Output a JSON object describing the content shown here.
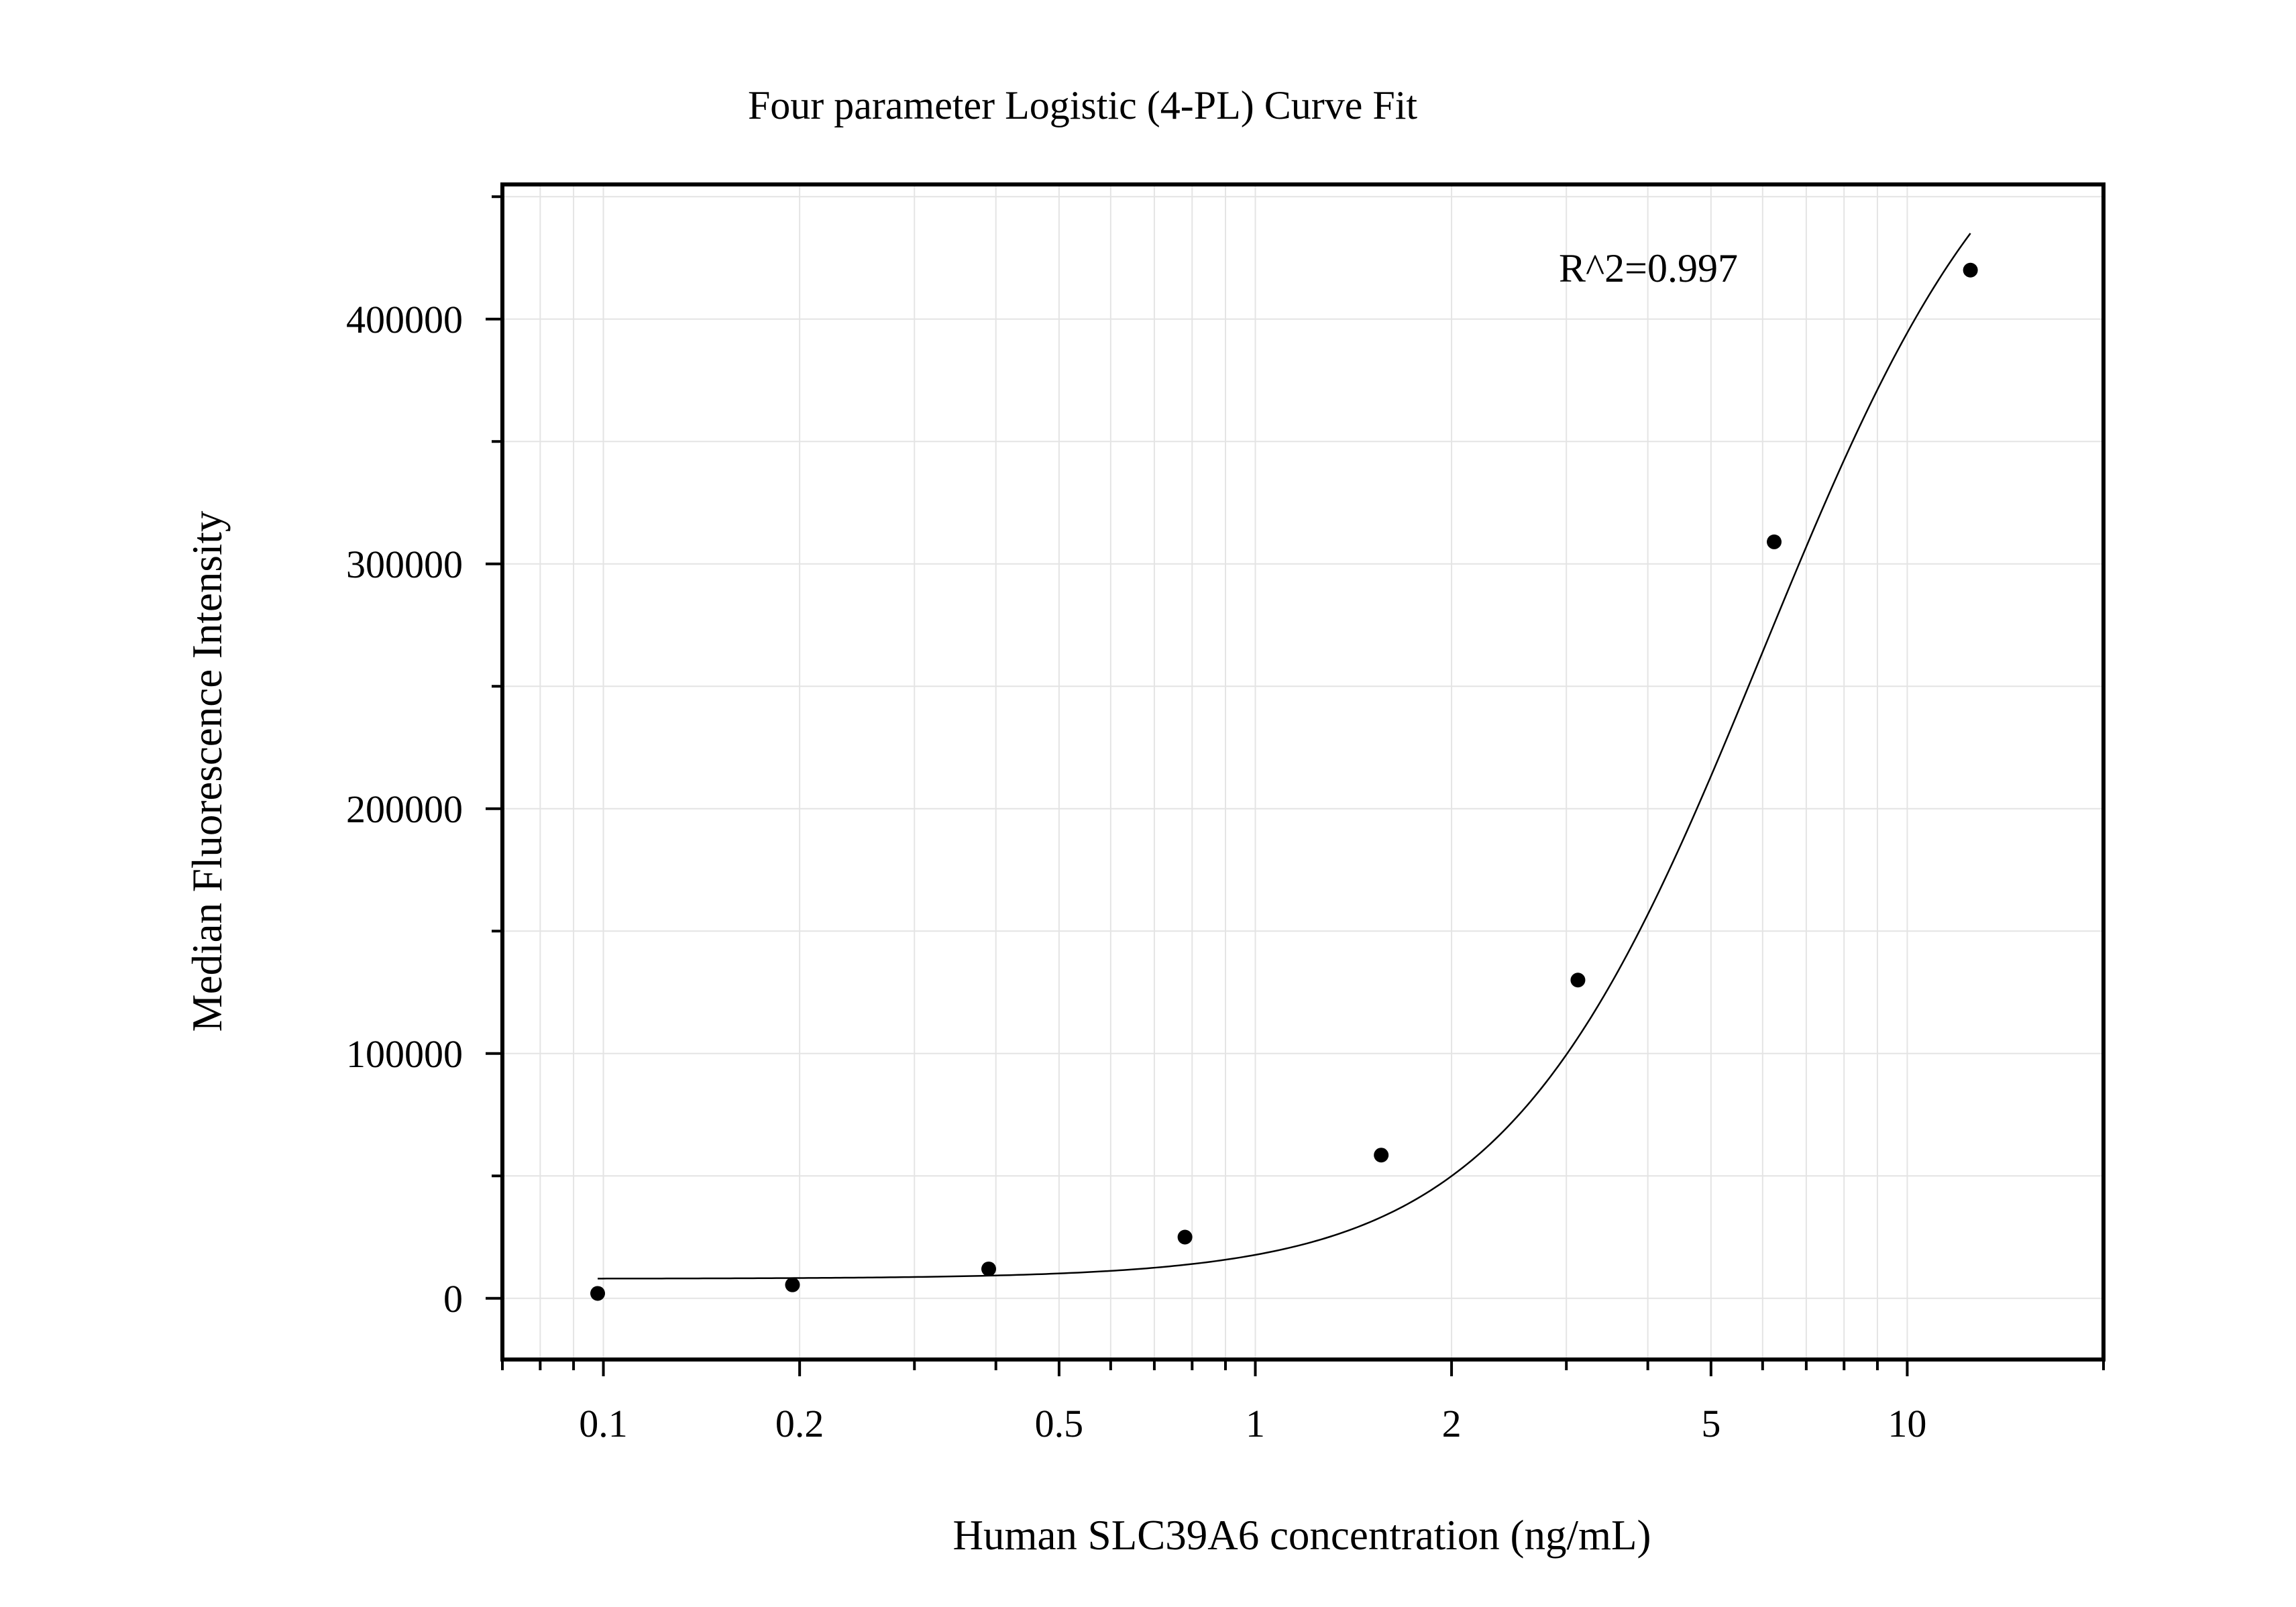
{
  "chart_data": {
    "type": "scatter",
    "title": "Four parameter Logistic (4-PL) Curve Fit",
    "xlabel": "Human SLC39A6 concentration (ng/mL)",
    "ylabel": "Median Fluorescence Intensity",
    "x_scale": "log",
    "xlim": [
      0.07,
      20
    ],
    "ylim": [
      -25000,
      455000
    ],
    "x_ticks": [
      {
        "value": 0.1,
        "label": "0.1"
      },
      {
        "value": 0.2,
        "label": "0.2"
      },
      {
        "value": 0.5,
        "label": "0.5"
      },
      {
        "value": 1,
        "label": "1"
      },
      {
        "value": 2,
        "label": "2"
      },
      {
        "value": 5,
        "label": "5"
      },
      {
        "value": 10,
        "label": "10"
      }
    ],
    "y_ticks": [
      {
        "value": 0,
        "label": "0"
      },
      {
        "value": 100000,
        "label": "100000"
      },
      {
        "value": 200000,
        "label": "200000"
      },
      {
        "value": 300000,
        "label": "300000"
      },
      {
        "value": 400000,
        "label": "400000"
      }
    ],
    "grid": true,
    "annotation": "R^2=0.997",
    "series": [
      {
        "x": [
          0.098,
          0.195,
          0.39,
          0.78,
          1.56,
          3.125,
          6.25,
          12.5
        ],
        "y": [
          2000,
          5500,
          12000,
          25000,
          58500,
          130000,
          309000,
          420000
        ]
      }
    ],
    "fit_curve": {
      "model": "4PL",
      "params": {
        "bottom": 8000,
        "top": 520000,
        "ec50": 6.0,
        "hill": 2.2
      },
      "x_range": [
        0.098,
        12.5
      ]
    }
  }
}
